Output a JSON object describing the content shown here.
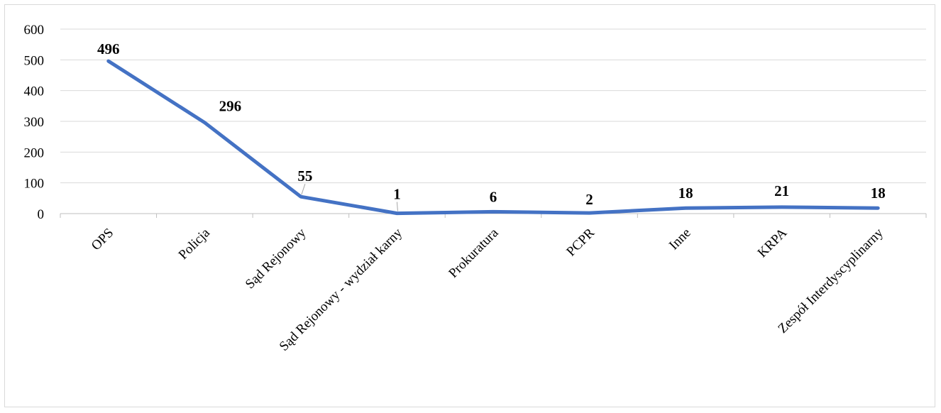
{
  "chart_data": {
    "type": "line",
    "categories": [
      "OPS",
      "Policja",
      "Sąd Rejonowy",
      "Sąd Rejonowy - wydział karny",
      "Prokuratura",
      "PCPR",
      "Inne",
      "KRPA",
      "Zespół Interdyscyplinarny"
    ],
    "series": [
      {
        "values": [
          496,
          296,
          55,
          1,
          6,
          2,
          18,
          21,
          18
        ]
      }
    ],
    "data_labels": [
      "496",
      "296",
      "55",
      "1",
      "6",
      "2",
      "18",
      "21",
      "18"
    ],
    "y_ticks": [
      "0",
      "100",
      "200",
      "300",
      "400",
      "500",
      "600"
    ],
    "ylim": [
      0,
      600
    ],
    "grid": true,
    "legend": "none",
    "title": "",
    "xlabel": "",
    "ylabel": "",
    "colors": {
      "line": "#4472c4",
      "grid": "#d9d9d9",
      "axis": "#bfbfbf"
    }
  }
}
